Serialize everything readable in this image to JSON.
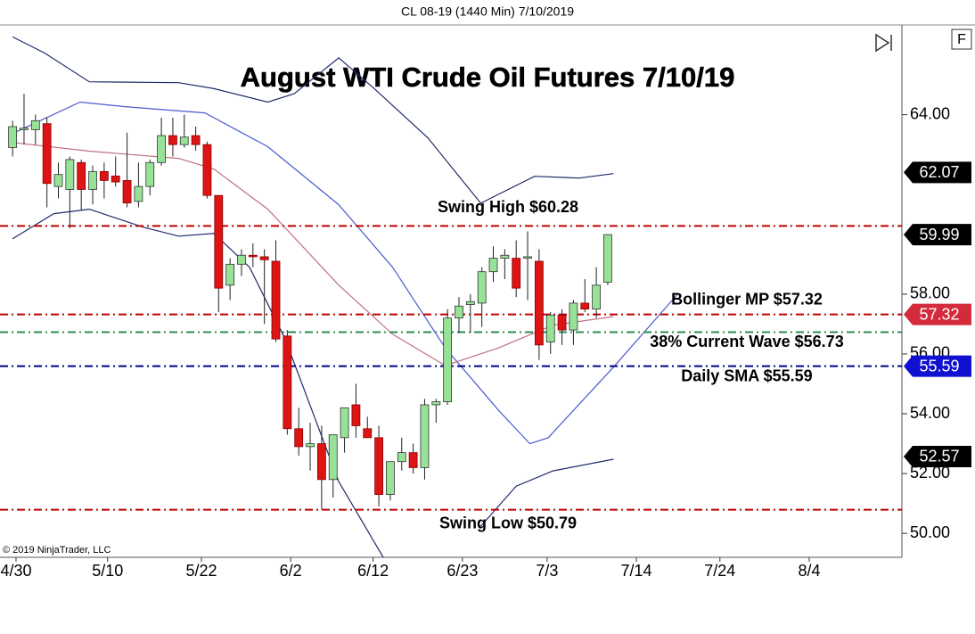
{
  "chart_data": {
    "type": "candlestick",
    "header": "CL 08-19 (1440 Min)  7/10/2019",
    "title": "August WTI Crude Oil Futures 7/10/19",
    "copyright": "© 2019 NinjaTrader, LLC",
    "corner_button": "F",
    "ylim": [
      49.2,
      67.0
    ],
    "yticks": [
      {
        "value": 64,
        "label": "64.00"
      },
      {
        "value": 58,
        "label": "58.00"
      },
      {
        "value": 56,
        "label": "56.00"
      },
      {
        "value": 54,
        "label": "54.00"
      },
      {
        "value": 52,
        "label": "52.00"
      },
      {
        "value": 50,
        "label": "50.00"
      }
    ],
    "xlim": [
      -1.1,
      77.7
    ],
    "xticks": [
      {
        "value": 0.3,
        "label": "4/30"
      },
      {
        "value": 8.3,
        "label": "5/10"
      },
      {
        "value": 16.5,
        "label": "5/22"
      },
      {
        "value": 24.3,
        "label": "6/2"
      },
      {
        "value": 31.5,
        "label": "6/12"
      },
      {
        "value": 39.3,
        "label": "6/23"
      },
      {
        "value": 46.7,
        "label": "7/3"
      },
      {
        "value": 54.5,
        "label": "7/14"
      },
      {
        "value": 61.8,
        "label": "7/24"
      },
      {
        "value": 69.6,
        "label": "8/4"
      }
    ],
    "up_color": "#98e298",
    "down_color": "#dd1414",
    "open": [
      62.9,
      63.5,
      63.5,
      63.7,
      61.6,
      61.5,
      62.4,
      61.5,
      62.1,
      61.95,
      61.8,
      61.1,
      61.6,
      62.4,
      63.3,
      63.0,
      63.3,
      63.0,
      61.3,
      58.3,
      59.0,
      59.3,
      59.25,
      59.1,
      56.6,
      53.5,
      52.9,
      53.0,
      51.8,
      53.2,
      54.3,
      53.5,
      53.2,
      51.3,
      52.4,
      52.7,
      52.2,
      54.3,
      54.4,
      57.2,
      57.65,
      57.7,
      58.75,
      59.2,
      59.2,
      59.2,
      59.1,
      56.4,
      57.3,
      56.8,
      57.7,
      57.5,
      58.4
    ],
    "high": [
      63.8,
      64.7,
      64.0,
      63.9,
      62.4,
      62.6,
      62.5,
      62.3,
      62.4,
      62.6,
      63.4,
      62.4,
      62.5,
      63.9,
      63.9,
      64.0,
      63.6,
      63.1,
      61.3,
      59.2,
      59.5,
      59.7,
      59.5,
      59.8,
      56.8,
      54.2,
      53.7,
      53.6,
      53.3,
      54.2,
      55.0,
      53.9,
      53.6,
      52.4,
      53.2,
      53.0,
      54.5,
      54.5,
      57.5,
      57.9,
      58.0,
      58.9,
      59.6,
      59.5,
      59.8,
      60.1,
      59.5,
      57.4,
      57.5,
      57.8,
      58.5,
      58.9,
      60.0
    ],
    "low": [
      62.6,
      63.0,
      63.0,
      60.9,
      61.2,
      60.2,
      60.8,
      61.0,
      61.2,
      61.6,
      60.9,
      60.9,
      61.3,
      62.3,
      62.6,
      62.9,
      62.8,
      61.2,
      57.4,
      57.8,
      58.6,
      58.9,
      57.0,
      56.4,
      53.3,
      52.6,
      52.1,
      50.8,
      51.2,
      52.7,
      53.2,
      53.2,
      50.9,
      51.1,
      52.1,
      52.0,
      51.8,
      53.7,
      54.3,
      56.7,
      56.7,
      56.9,
      58.4,
      58.5,
      57.9,
      57.8,
      55.8,
      56.0,
      56.3,
      56.3,
      57.4,
      57.2,
      58.3
    ],
    "close": [
      63.6,
      63.55,
      63.8,
      61.7,
      62.0,
      62.5,
      61.5,
      62.1,
      61.8,
      61.75,
      61.05,
      61.6,
      62.4,
      63.3,
      63.0,
      63.25,
      63.0,
      61.3,
      58.2,
      59.0,
      59.3,
      59.25,
      59.15,
      56.5,
      53.5,
      52.9,
      53.0,
      51.8,
      53.3,
      54.2,
      53.6,
      53.2,
      51.3,
      52.4,
      52.7,
      52.2,
      54.3,
      54.4,
      57.2,
      57.6,
      57.75,
      58.75,
      59.2,
      59.3,
      58.2,
      59.25,
      56.3,
      57.3,
      56.8,
      57.7,
      57.5,
      58.3,
      59.99
    ],
    "lines": [
      {
        "color": "#1f2a6b",
        "x": [
          0,
          2.8,
          6.7,
          14.5,
          17.6,
          22.3,
          24.6,
          28.5,
          31.6,
          36.3,
          40.9,
          45.6,
          49.5,
          52.5
        ],
        "values": [
          66.6,
          66.06,
          65.1,
          65.07,
          64.87,
          64.42,
          64.7,
          65.9,
          64.87,
          63.22,
          61.04,
          61.94,
          61.88,
          62.03
        ]
      },
      {
        "color": "#1f2a6b",
        "x": [
          0,
          3.6,
          6.7,
          11.4,
          14.5,
          17.6,
          20.7,
          23.8,
          28.5,
          32.4,
          null,
          40.9,
          44.0,
          47.2,
          52.5
        ],
        "values": [
          59.85,
          60.69,
          60.84,
          60.24,
          59.94,
          60.03,
          58.9,
          56.51,
          51.73,
          49.19,
          null,
          50.24,
          51.58,
          52.09,
          52.48
        ]
      },
      {
        "color": "#4a5ad0",
        "x": [
          0,
          5.9,
          9.8,
          16.8,
          22.3,
          28.5,
          33.2,
          37.8,
          42.5,
          45.2,
          46.8,
          52.6,
          58.1
        ],
        "values": [
          63.37,
          64.42,
          64.27,
          64.06,
          62.93,
          60.99,
          58.9,
          56.2,
          54.1,
          53.0,
          53.2,
          55.6,
          58.0
        ]
      },
      {
        "color": "#c07080",
        "x": [
          0,
          6.7,
          14.5,
          17.6,
          22.3,
          28.5,
          33.2,
          37.8,
          42.5,
          47.2,
          52.5
        ],
        "values": [
          63.07,
          62.78,
          62.54,
          62.18,
          60.84,
          58.3,
          56.66,
          55.61,
          56.21,
          56.96,
          57.25
        ]
      }
    ],
    "hlines": [
      {
        "value": 60.28,
        "label": "Swing High $60.28",
        "color": "#c00000"
      },
      {
        "value": 57.32,
        "label": "Bollinger MP $57.32",
        "color": "#c00000"
      },
      {
        "value": 56.73,
        "label": "38% Current Wave $56.73",
        "color": "#2e8b57"
      },
      {
        "value": 55.59,
        "label": "Daily SMA $55.59",
        "color": "#00008b"
      },
      {
        "value": 50.79,
        "label": "Swing Low $50.79",
        "color": "#c00000"
      }
    ],
    "price_tags": [
      {
        "value": 62.07,
        "color": "#000000"
      },
      {
        "value": 59.99,
        "color": "#000000"
      },
      {
        "value": 57.32,
        "color": "#d42b3c"
      },
      {
        "value": 55.59,
        "color": "#1010d0"
      },
      {
        "value": 52.57,
        "color": "#000000"
      }
    ]
  }
}
